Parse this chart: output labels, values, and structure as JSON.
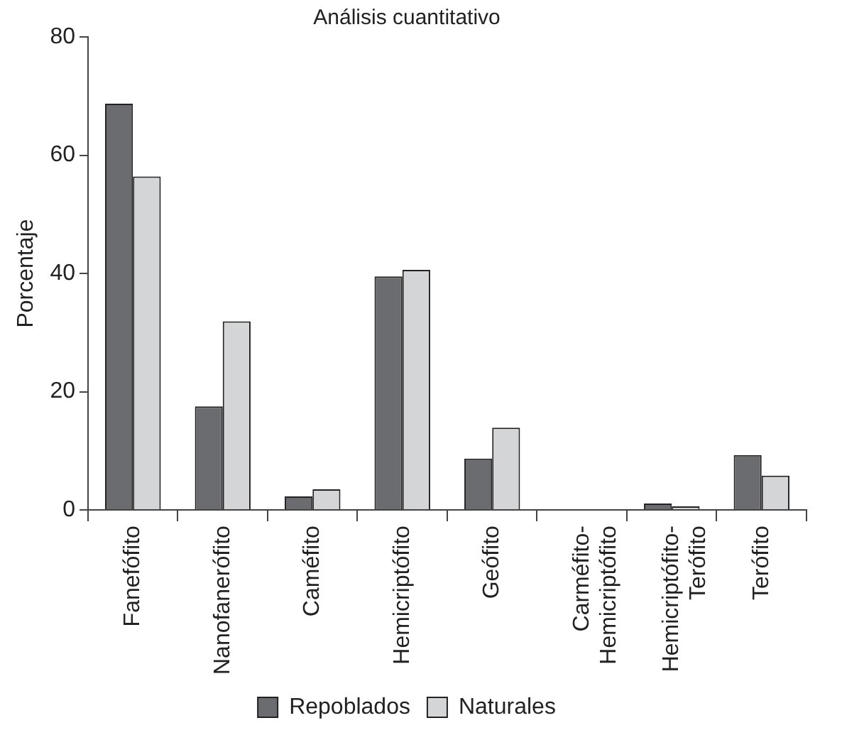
{
  "chart_data": {
    "type": "bar",
    "title": "Análisis cuantitativo",
    "ylabel": "Porcentaje",
    "categories": [
      "Fanefófito",
      "Nanofanerófito",
      "Caméfito",
      "Hemicriptófito",
      "Geófito",
      "Carméfito-Hemicriptófito",
      "Hemicriptófito-Terófito",
      "Terófito"
    ],
    "series": [
      {
        "name": "Repoblados",
        "color": "#6b6c70",
        "values": [
          68.7,
          17.5,
          2.3,
          39.5,
          8.7,
          0,
          1.1,
          9.3
        ]
      },
      {
        "name": "Naturales",
        "color": "#d4d5d7",
        "values": [
          56.4,
          31.9,
          3.5,
          40.6,
          13.9,
          0,
          0.6,
          5.8
        ]
      }
    ],
    "ylim": [
      0,
      80
    ],
    "yticks": [
      0,
      20,
      40,
      60,
      80
    ],
    "grid": false,
    "legend": "bottom"
  }
}
